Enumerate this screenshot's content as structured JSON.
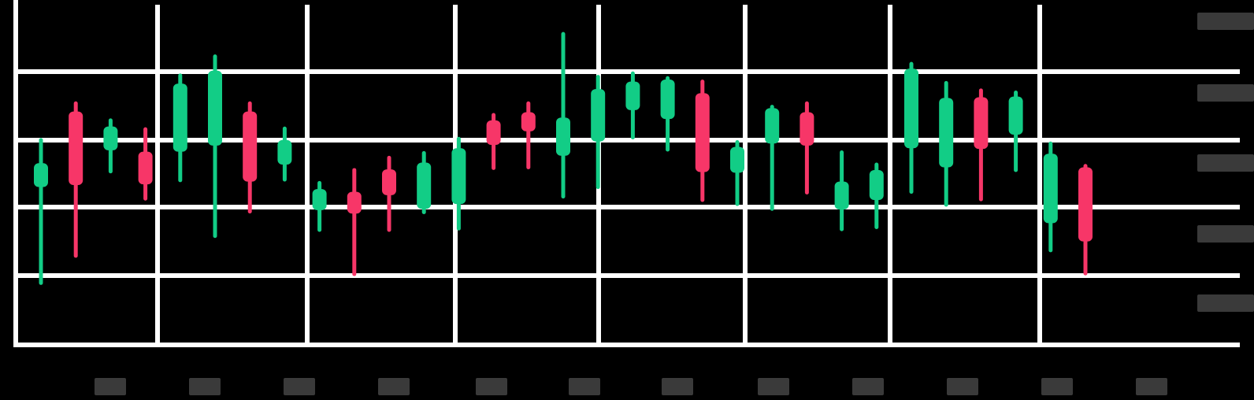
{
  "chart_data": {
    "type": "candlestick",
    "title": "",
    "xlabel": "",
    "ylabel": "",
    "x_tick_labels": [
      "",
      "",
      "",
      "",
      "",
      "",
      "",
      "",
      "",
      "",
      "",
      ""
    ],
    "y_tick_labels": [
      "",
      "",
      "",
      "",
      ""
    ],
    "ylim": [
      0,
      5
    ],
    "grid": true,
    "colors": {
      "up": "#12cd86",
      "down": "#f73668",
      "grid": "#ffffff",
      "background": "#000000",
      "tick_placeholder": "#3a3a3a"
    },
    "candles": [
      {
        "open": 2.32,
        "close": 2.67,
        "high": 3.01,
        "low": 0.91
      },
      {
        "open": 3.43,
        "close": 2.35,
        "high": 3.55,
        "low": 1.31
      },
      {
        "open": 2.86,
        "close": 3.21,
        "high": 3.3,
        "low": 2.55
      },
      {
        "open": 2.84,
        "close": 2.36,
        "high": 3.17,
        "low": 2.15
      },
      {
        "open": 2.84,
        "close": 3.84,
        "high": 3.96,
        "low": 2.42
      },
      {
        "open": 2.93,
        "close": 4.03,
        "high": 4.24,
        "low": 1.6
      },
      {
        "open": 3.43,
        "close": 2.4,
        "high": 3.55,
        "low": 1.96
      },
      {
        "open": 2.65,
        "close": 3.01,
        "high": 3.18,
        "low": 2.43
      },
      {
        "open": 1.98,
        "close": 2.29,
        "high": 2.38,
        "low": 1.69
      },
      {
        "open": 2.25,
        "close": 1.93,
        "high": 2.57,
        "low": 1.04
      },
      {
        "open": 2.58,
        "close": 2.2,
        "high": 2.75,
        "low": 1.69
      },
      {
        "open": 2.0,
        "close": 2.68,
        "high": 2.82,
        "low": 1.95
      },
      {
        "open": 2.07,
        "close": 2.89,
        "high": 3.03,
        "low": 1.71
      },
      {
        "open": 3.3,
        "close": 2.94,
        "high": 3.38,
        "low": 2.6
      },
      {
        "open": 3.42,
        "close": 3.14,
        "high": 3.55,
        "low": 2.61
      },
      {
        "open": 2.78,
        "close": 3.34,
        "high": 4.57,
        "low": 2.18
      },
      {
        "open": 2.99,
        "close": 3.76,
        "high": 3.94,
        "low": 2.32
      },
      {
        "open": 3.45,
        "close": 3.87,
        "high": 3.99,
        "low": 3.05
      },
      {
        "open": 3.32,
        "close": 3.9,
        "high": 3.92,
        "low": 2.87
      },
      {
        "open": 3.7,
        "close": 2.54,
        "high": 3.87,
        "low": 2.13
      },
      {
        "open": 2.53,
        "close": 2.91,
        "high": 2.98,
        "low": 2.07
      },
      {
        "open": 2.96,
        "close": 3.48,
        "high": 3.5,
        "low": 2.0
      },
      {
        "open": 3.42,
        "close": 2.93,
        "high": 3.55,
        "low": 2.24
      },
      {
        "open": 1.99,
        "close": 2.4,
        "high": 2.83,
        "low": 1.7
      },
      {
        "open": 2.13,
        "close": 2.57,
        "high": 2.65,
        "low": 1.73
      },
      {
        "open": 2.89,
        "close": 4.06,
        "high": 4.13,
        "low": 2.25
      },
      {
        "open": 2.61,
        "close": 3.63,
        "high": 3.85,
        "low": 2.06
      },
      {
        "open": 3.64,
        "close": 2.88,
        "high": 3.74,
        "low": 2.14
      },
      {
        "open": 3.09,
        "close": 3.65,
        "high": 3.71,
        "low": 2.57
      },
      {
        "open": 1.79,
        "close": 2.81,
        "high": 2.96,
        "low": 1.39
      },
      {
        "open": 2.61,
        "close": 1.52,
        "high": 2.63,
        "low": 1.05
      }
    ]
  }
}
